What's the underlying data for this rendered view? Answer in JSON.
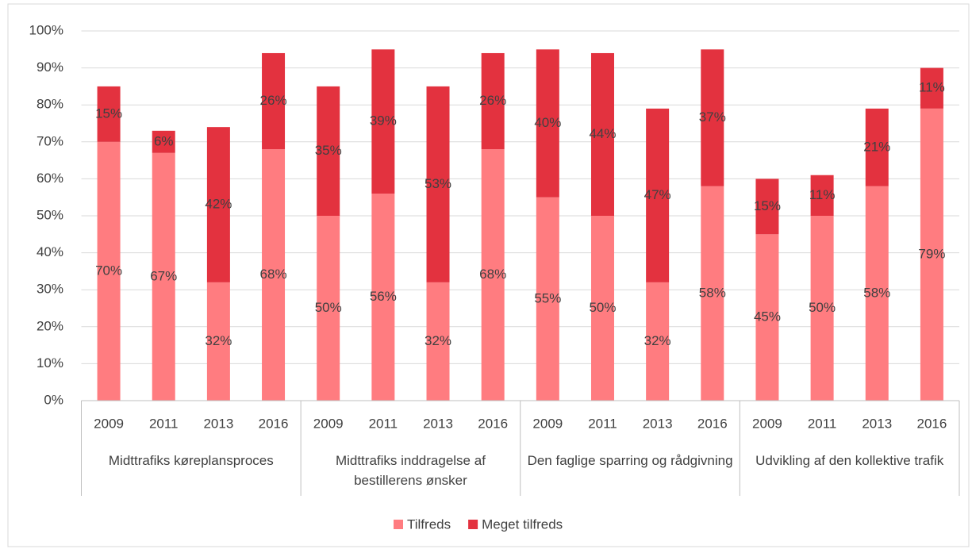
{
  "chart_data": {
    "type": "stacked_bar",
    "categories": [
      "2009",
      "2011",
      "2013",
      "2016",
      "2009",
      "2011",
      "2013",
      "2016",
      "2009",
      "2011",
      "2013",
      "2016",
      "2009",
      "2011",
      "2013",
      "2016"
    ],
    "groups": [
      "Midttrafiks køreplansproces",
      "Midttrafiks inddragelse af bestillerens ønsker",
      "Den faglige sparring og rådgivning",
      "Udvikling af den kollektive trafik"
    ],
    "series": [
      {
        "name": "Tilfreds",
        "color": "#ff7c80",
        "values": [
          70,
          67,
          32,
          68,
          50,
          56,
          32,
          68,
          55,
          50,
          32,
          58,
          45,
          50,
          58,
          79
        ],
        "value_labels": [
          "70%",
          "67%",
          "32%",
          "68%",
          "50%",
          "56%",
          "32%",
          "68%",
          "55%",
          "50%",
          "32%",
          "58%",
          "45%",
          "50%",
          "58%",
          "79%"
        ]
      },
      {
        "name": "Meget tilfreds",
        "color": "#e3323f",
        "values": [
          15,
          6,
          42,
          26,
          35,
          39,
          53,
          26,
          40,
          44,
          47,
          37,
          15,
          11,
          21,
          11
        ],
        "value_labels": [
          "15%",
          "6%",
          "42%",
          "26%",
          "35%",
          "39%",
          "53%",
          "26%",
          "40%",
          "44%",
          "47%",
          "37%",
          "15%",
          "11%",
          "21%",
          "11%"
        ]
      }
    ],
    "ylim": [
      0,
      100
    ],
    "yticks": [
      {
        "value": 0,
        "label": "0%"
      },
      {
        "value": 10,
        "label": "10%"
      },
      {
        "value": 20,
        "label": "20%"
      },
      {
        "value": 30,
        "label": "30%"
      },
      {
        "value": 40,
        "label": "40%"
      },
      {
        "value": 50,
        "label": "50%"
      },
      {
        "value": 60,
        "label": "60%"
      },
      {
        "value": 70,
        "label": "70%"
      },
      {
        "value": 80,
        "label": "80%"
      },
      {
        "value": 90,
        "label": "90%"
      },
      {
        "value": 100,
        "label": "100%"
      }
    ],
    "grid": true,
    "legend": "bottom"
  }
}
